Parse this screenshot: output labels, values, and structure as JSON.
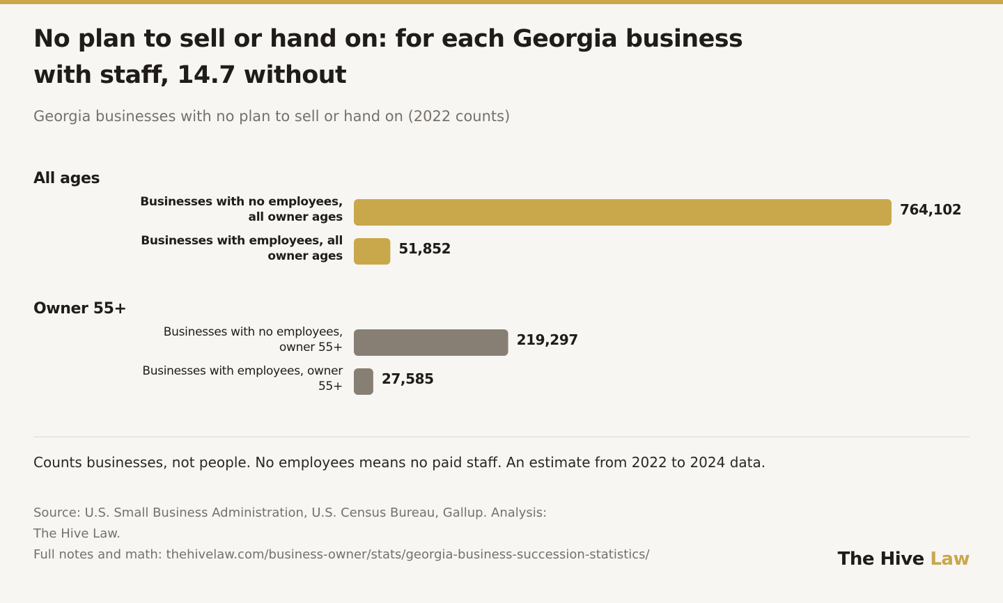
{
  "title": "No plan to sell or hand on: for each Georgia business with staff, 14.7 without",
  "subtitle": "Georgia businesses with no plan to sell or hand on (2022 counts)",
  "note": "Counts businesses, not people. No employees means no paid staff. An estimate from 2022 to 2024 data.",
  "source": {
    "line1": "Source: U.S. Small Business Administration, U.S. Census Bureau, Gallup. Analysis:",
    "line2": "The Hive Law.",
    "line3": "Full notes and math: thehivelaw.com/business-owner/stats/georgia-business-succession-statistics/"
  },
  "brand": {
    "name": "The Hive",
    "accent": "Law"
  },
  "colors": {
    "accent": "#c9a84c",
    "muted": "#877f73",
    "text": "#1f1c1a"
  },
  "chart_data": {
    "type": "bar",
    "orientation": "horizontal",
    "xlim": [
      0,
      764102
    ],
    "groups": [
      {
        "name": "All ages",
        "color": "#c9a84c",
        "bold_labels": true,
        "bars": [
          {
            "label_lines": [
              "Businesses with no employees,",
              "all owner ages"
            ],
            "value": 764102,
            "display": "764,102"
          },
          {
            "label_lines": [
              "Businesses with employees, all",
              "owner ages"
            ],
            "value": 51852,
            "display": "51,852"
          }
        ]
      },
      {
        "name": "Owner 55+",
        "color": "#877f73",
        "bold_labels": false,
        "bars": [
          {
            "label_lines": [
              "Businesses with no employees,",
              "owner 55+"
            ],
            "value": 219297,
            "display": "219,297"
          },
          {
            "label_lines": [
              "Businesses with employees, owner",
              "55+"
            ],
            "value": 27585,
            "display": "27,585"
          }
        ]
      }
    ]
  }
}
